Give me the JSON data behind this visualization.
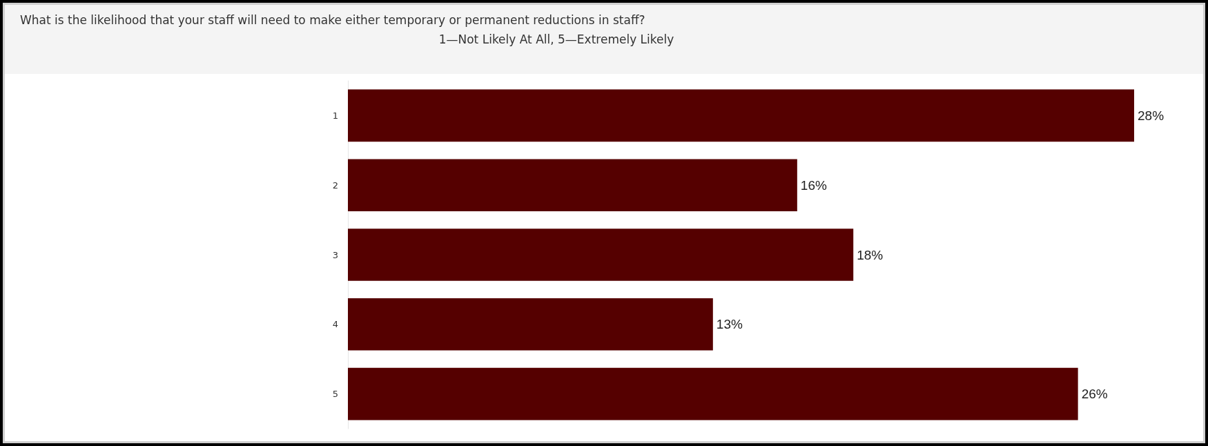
{
  "chart_data": {
    "type": "bar",
    "orientation": "horizontal",
    "title": "What is the likelihood that your staff will need to make either temporary or permanent reductions in staff?",
    "subtitle": "1—Not Likely At All, 5—Extremely Likely",
    "categories": [
      "1",
      "2",
      "3",
      "4",
      "5"
    ],
    "values": [
      28,
      16,
      18,
      13,
      26
    ],
    "value_labels": [
      "28%",
      "16%",
      "18%",
      "13%",
      "26%"
    ],
    "color": "#550000",
    "tick_labels": "y"
  }
}
